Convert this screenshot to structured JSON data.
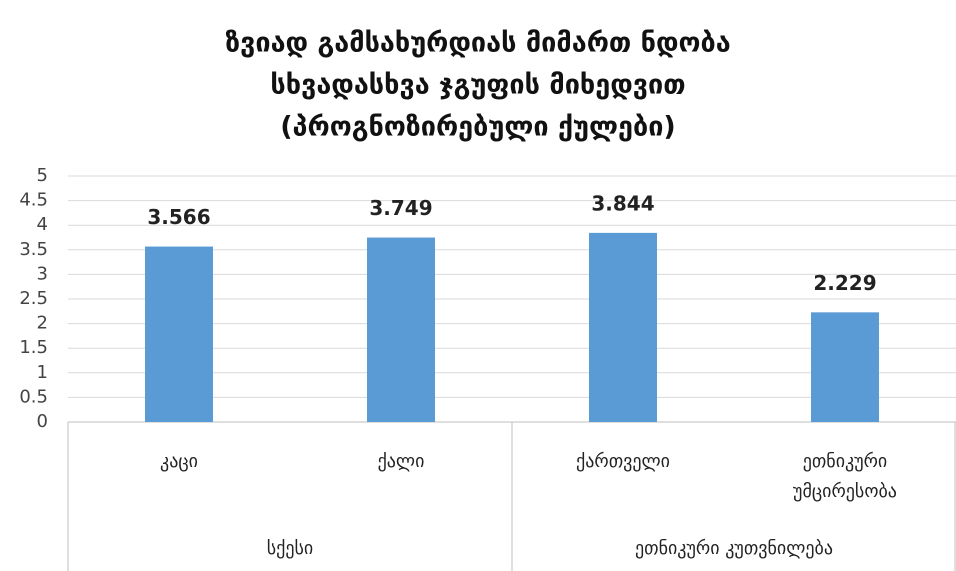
{
  "chart_data": {
    "type": "bar",
    "title_lines": [
      "ზვიად გამსახურდიას მიმართ ნდობა",
      "სხვადასხვა ჯგუფის მიხედვით",
      "(პროგნოზირებული ქულები)"
    ],
    "categories": [
      "კაცი",
      "ქალი",
      "ქართველი",
      "ეთნიკური უმცირესობა"
    ],
    "groups": [
      {
        "name": "სქესი",
        "span": 2
      },
      {
        "name": "ეთნიკური კუთვნილება",
        "span": 2
      }
    ],
    "values": [
      3.566,
      3.749,
      3.844,
      2.229
    ],
    "color": "#5b9bd5",
    "ylim": [
      0,
      5
    ],
    "yticks": [
      0,
      0.5,
      1,
      1.5,
      2,
      2.5,
      3,
      3.5,
      4,
      4.5,
      5
    ],
    "grid": true
  }
}
